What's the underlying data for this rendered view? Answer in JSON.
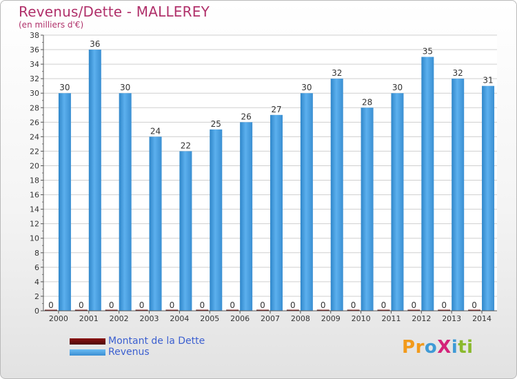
{
  "title": "Revenus/Dette - MALLEREY",
  "subtitle": "(en milliers d'€)",
  "logo": {
    "text": "ProXiti",
    "letters": [
      {
        "ch": "P",
        "color": "#f29a1b"
      },
      {
        "ch": "r",
        "color": "#f29a1b"
      },
      {
        "ch": "o",
        "color": "#3f9ad6"
      },
      {
        "ch": "X",
        "color": "#d4237a"
      },
      {
        "ch": "i",
        "color": "#3f9ad6"
      },
      {
        "ch": "t",
        "color": "#8ab92d"
      },
      {
        "ch": "i",
        "color": "#8ab92d"
      }
    ]
  },
  "chart_data": {
    "type": "bar",
    "categories": [
      "2000",
      "2001",
      "2002",
      "2003",
      "2004",
      "2005",
      "2006",
      "2007",
      "2008",
      "2009",
      "2010",
      "2011",
      "2012",
      "2013",
      "2014"
    ],
    "series": [
      {
        "name": "Montant de la Dette",
        "color": "#6b0b0b",
        "values": [
          0,
          0,
          0,
          0,
          0,
          0,
          0,
          0,
          0,
          0,
          0,
          0,
          0,
          0,
          0
        ]
      },
      {
        "name": "Revenus",
        "color": "#4ea3e6",
        "values": [
          30,
          36,
          30,
          24,
          22,
          25,
          26,
          27,
          30,
          32,
          28,
          30,
          35,
          32,
          31
        ]
      }
    ],
    "ylim": [
      0,
      38
    ],
    "yticks": [
      0,
      2,
      4,
      6,
      8,
      10,
      12,
      14,
      16,
      18,
      20,
      22,
      24,
      26,
      28,
      30,
      32,
      34,
      36,
      38
    ],
    "grid": true,
    "legend": "bottom-left"
  }
}
